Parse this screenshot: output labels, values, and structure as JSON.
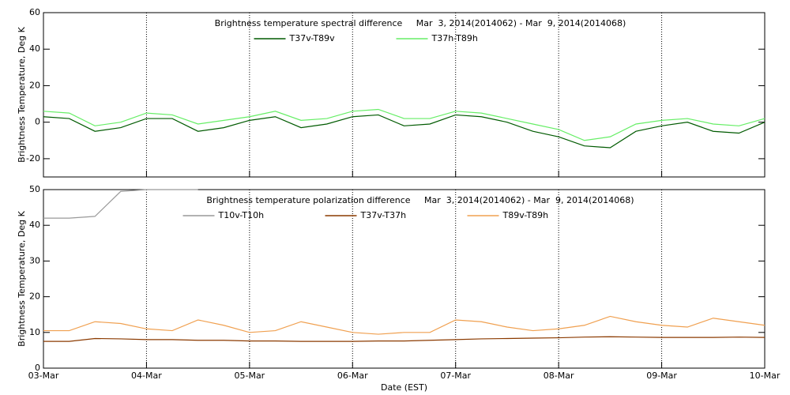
{
  "chart_data": [
    {
      "type": "line",
      "title": "Brightness temperature spectral difference     Mar  3, 2014(2014062) - Mar  9, 2014(2014068)",
      "y_label": "Brightness Temperature, Deg K",
      "x": [
        0,
        0.25,
        0.5,
        0.75,
        1,
        1.25,
        1.5,
        1.75,
        2,
        2.25,
        2.5,
        2.75,
        3,
        3.25,
        3.5,
        3.75,
        4,
        4.25,
        4.5,
        4.75,
        5,
        5.25,
        5.5,
        5.75,
        6,
        6.25,
        6.5,
        6.75,
        7
      ],
      "series": [
        {
          "name": "T37v-T89v",
          "color": "#005a00",
          "values": [
            3,
            2,
            -5,
            -3,
            2,
            2,
            -5,
            -3,
            1,
            3,
            -3,
            -1,
            3,
            4,
            -2,
            -1,
            4,
            3,
            0,
            -5,
            -8,
            -13,
            -14,
            -5,
            -2,
            0,
            -5,
            -6,
            0
          ]
        },
        {
          "name": "T37h-T89h",
          "color": "#66ee66",
          "values": [
            6,
            5,
            -2,
            0,
            5,
            4,
            -1,
            1,
            3,
            6,
            1,
            2,
            6,
            7,
            2,
            2,
            6,
            5,
            2,
            -1,
            -4,
            -10,
            -8,
            -1,
            1,
            2,
            -1,
            -2,
            2
          ]
        }
      ],
      "xlim": [
        0,
        7
      ],
      "xticks": [
        0,
        1,
        2,
        3,
        4,
        5,
        6,
        7
      ],
      "ylim": [
        -30,
        60
      ],
      "yticks": [
        -20,
        0,
        20,
        40,
        60
      ],
      "grid": true
    },
    {
      "type": "line",
      "title": "Brightness temperature polarization difference     Mar  3, 2014(2014062) - Mar  9, 2014(2014068)",
      "y_label": "Brightness Temperature, Deg K",
      "x_label": "Date (EST)",
      "x": [
        0,
        0.25,
        0.5,
        0.75,
        1,
        1.25,
        1.5,
        1.75,
        2,
        2.25,
        2.5,
        2.75,
        3,
        3.25,
        3.5,
        3.75,
        4,
        4.25,
        4.5,
        4.75,
        5,
        5.25,
        5.5,
        5.75,
        6,
        6.25,
        6.5,
        6.75,
        7
      ],
      "series": [
        {
          "name": "T10v-T10h",
          "color": "#999999",
          "values": [
            42,
            42,
            42.5,
            49.5,
            50,
            50,
            50,
            null,
            null,
            null,
            null,
            null,
            null,
            null,
            null,
            null,
            null,
            null,
            null,
            null,
            null,
            null,
            null,
            null,
            null,
            null,
            null,
            null,
            null
          ]
        },
        {
          "name": "T37v-T37h",
          "color": "#8b3a00",
          "values": [
            7.5,
            7.5,
            8.3,
            8.2,
            8,
            8,
            7.8,
            7.8,
            7.6,
            7.6,
            7.5,
            7.5,
            7.5,
            7.6,
            7.6,
            7.8,
            8,
            8.2,
            8.3,
            8.4,
            8.5,
            8.7,
            8.8,
            8.7,
            8.6,
            8.6,
            8.6,
            8.7,
            8.6
          ]
        },
        {
          "name": "T89v-T89h",
          "color": "#f0a050",
          "values": [
            10.5,
            10.5,
            13,
            12.5,
            11,
            10.5,
            13.5,
            12,
            10,
            10.5,
            13,
            11.5,
            10,
            9.5,
            10,
            10,
            13.5,
            13,
            11.5,
            10.5,
            11,
            12,
            14.5,
            13,
            12,
            11.5,
            14,
            13,
            12
          ]
        }
      ],
      "xlim": [
        0,
        7
      ],
      "xticks": [
        {
          "value": 0,
          "label": "03-Mar"
        },
        {
          "value": 1,
          "label": "04-Mar"
        },
        {
          "value": 2,
          "label": "05-Mar"
        },
        {
          "value": 3,
          "label": "06-Mar"
        },
        {
          "value": 4,
          "label": "07-Mar"
        },
        {
          "value": 5,
          "label": "08-Mar"
        },
        {
          "value": 6,
          "label": "09-Mar"
        },
        {
          "value": 7,
          "label": "10-Mar"
        }
      ],
      "ylim": [
        0,
        50
      ],
      "yticks": [
        0,
        10,
        20,
        30,
        40,
        50
      ],
      "grid": true
    }
  ]
}
